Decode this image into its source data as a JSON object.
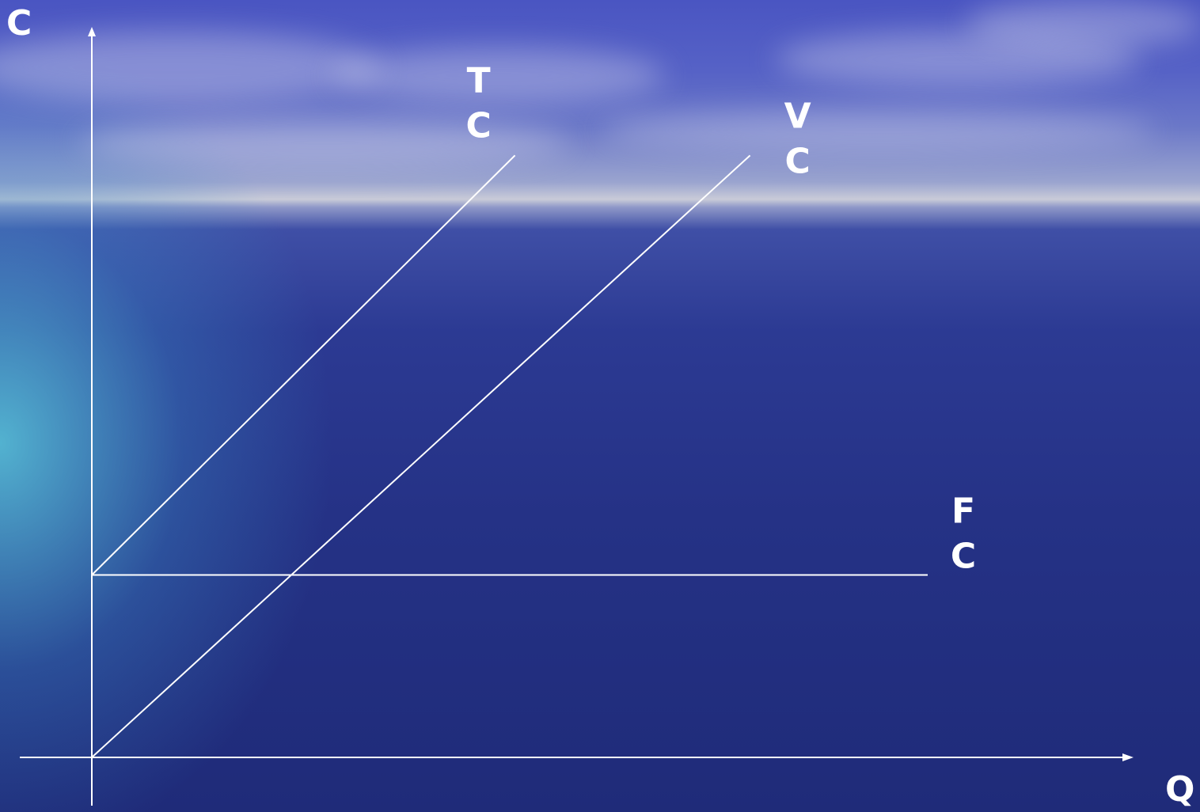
{
  "chart_data": {
    "type": "line",
    "xlabel": "Q",
    "ylabel": "C",
    "xlim": [
      0,
      100
    ],
    "ylim": [
      0,
      100
    ],
    "grid": false,
    "series": [
      {
        "name": "TC",
        "label_lines": [
          "T",
          "C"
        ],
        "x": [
          0,
          40.5
        ],
        "y": [
          25,
          82.5
        ]
      },
      {
        "name": "VC",
        "label_lines": [
          "V",
          "C"
        ],
        "x": [
          0,
          63
        ],
        "y": [
          0,
          82.5
        ]
      },
      {
        "name": "FC",
        "label_lines": [
          "F",
          "C"
        ],
        "x": [
          0,
          80
        ],
        "y": [
          25,
          25
        ]
      }
    ],
    "colors": {
      "line": "#ffffff",
      "text": "#ffffff"
    }
  }
}
